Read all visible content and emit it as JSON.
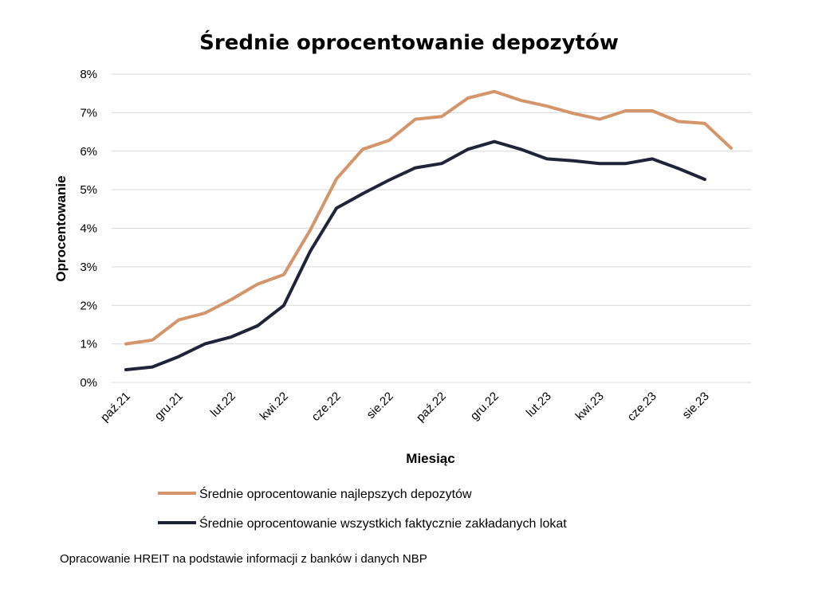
{
  "chart_data": {
    "type": "line",
    "title": "Średnie oprocentowanie depozytów",
    "xlabel": "Miesiąc",
    "ylabel": "Oprocentowanie",
    "ylim": [
      0,
      8
    ],
    "y_ticks": [
      "0%",
      "1%",
      "2%",
      "3%",
      "4%",
      "5%",
      "6%",
      "7%",
      "8%"
    ],
    "grid": true,
    "legend_position": "bottom",
    "x": [
      "paź.21",
      "lis.21",
      "gru.21",
      "sty.22",
      "lut.22",
      "mar.22",
      "kwi.22",
      "maj.22",
      "cze.22",
      "lip.22",
      "sie.22",
      "wrz.22",
      "paź.22",
      "lis.22",
      "gru.22",
      "sty.23",
      "lut.23",
      "mar.23",
      "kwi.23",
      "maj.23",
      "cze.23",
      "lip.23",
      "sie.23",
      "wrz.23"
    ],
    "x_tick_labels": [
      "paź.21",
      "gru.21",
      "lut.22",
      "kwi.22",
      "cze.22",
      "sie.22",
      "paź.22",
      "gru.22",
      "lut.23",
      "kwi.23",
      "cze.23",
      "sie.23"
    ],
    "series": [
      {
        "name": "Średnie oprocentowanie najlepszych depozytów",
        "color": "#d4956b",
        "values": [
          1.0,
          1.1,
          1.62,
          1.8,
          2.15,
          2.55,
          2.8,
          3.95,
          5.28,
          6.05,
          6.28,
          6.83,
          6.9,
          7.38,
          7.55,
          7.32,
          7.17,
          6.98,
          6.83,
          7.05,
          7.05,
          6.77,
          6.72,
          6.08
        ]
      },
      {
        "name": "Średnie oprocentowanie wszystkich faktycznie zakładanych lokat",
        "color": "#1f2438",
        "values": [
          0.33,
          0.4,
          0.67,
          1.0,
          1.18,
          1.47,
          2.0,
          3.4,
          4.52,
          4.9,
          5.25,
          5.57,
          5.68,
          6.05,
          6.25,
          6.05,
          5.8,
          5.75,
          5.68,
          5.68,
          5.8,
          5.55,
          5.27,
          null
        ]
      }
    ]
  },
  "source_note": "Opracowanie HREIT na podstawie informacji z banków i danych NBP"
}
